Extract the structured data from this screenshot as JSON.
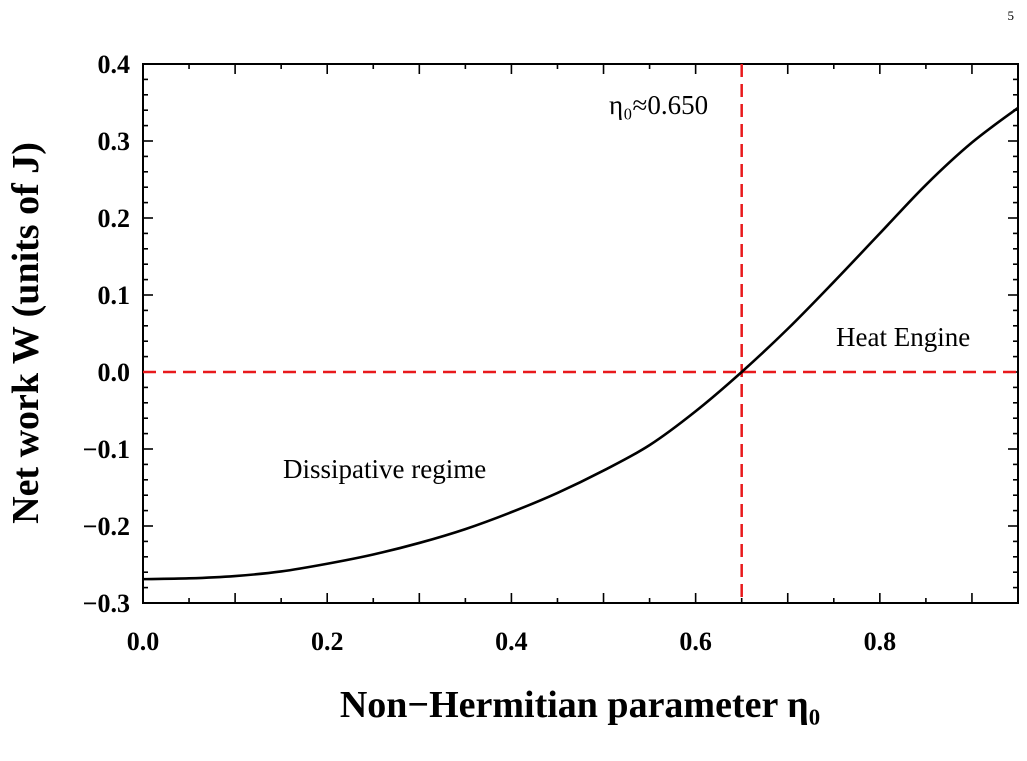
{
  "page_number": "5",
  "chart_data": {
    "type": "line",
    "xlabel": "Non−Hermitian parameter η₀",
    "ylabel": "Net work W (units of J)",
    "xlim": [
      0.0,
      0.95
    ],
    "ylim": [
      -0.3,
      0.4
    ],
    "x_ticks": [
      "0.0",
      "0.2",
      "0.4",
      "0.6",
      "0.8"
    ],
    "x_tick_values": [
      0.0,
      0.2,
      0.4,
      0.6,
      0.8
    ],
    "y_ticks": [
      "−0.3",
      "−0.2",
      "−0.1",
      "0.0",
      "0.1",
      "0.2",
      "0.3",
      "0.4"
    ],
    "y_tick_values": [
      -0.3,
      -0.2,
      -0.1,
      0.0,
      0.1,
      0.2,
      0.3,
      0.4
    ],
    "grid": false,
    "series": [
      {
        "color": "#000000",
        "x": [
          0.0,
          0.05,
          0.1,
          0.15,
          0.2,
          0.25,
          0.3,
          0.35,
          0.4,
          0.45,
          0.5,
          0.55,
          0.6,
          0.65,
          0.7,
          0.75,
          0.8,
          0.85,
          0.9,
          0.95
        ],
        "y": [
          -0.269,
          -0.268,
          -0.265,
          -0.259,
          -0.249,
          -0.237,
          -0.222,
          -0.204,
          -0.182,
          -0.157,
          -0.128,
          -0.095,
          -0.051,
          0.0,
          0.056,
          0.117,
          0.18,
          0.243,
          0.298,
          0.343
        ]
      }
    ],
    "reference_lines": [
      {
        "orientation": "vertical",
        "value": 0.65,
        "color": "#e8191c",
        "style": "dashed"
      },
      {
        "orientation": "horizontal",
        "value": 0.0,
        "color": "#e8191c",
        "style": "dashed"
      }
    ],
    "annotations": {
      "eta_label": "η₀≈0.650",
      "heat_engine": "Heat Engine",
      "dissipative": "Dissipative regime"
    }
  }
}
